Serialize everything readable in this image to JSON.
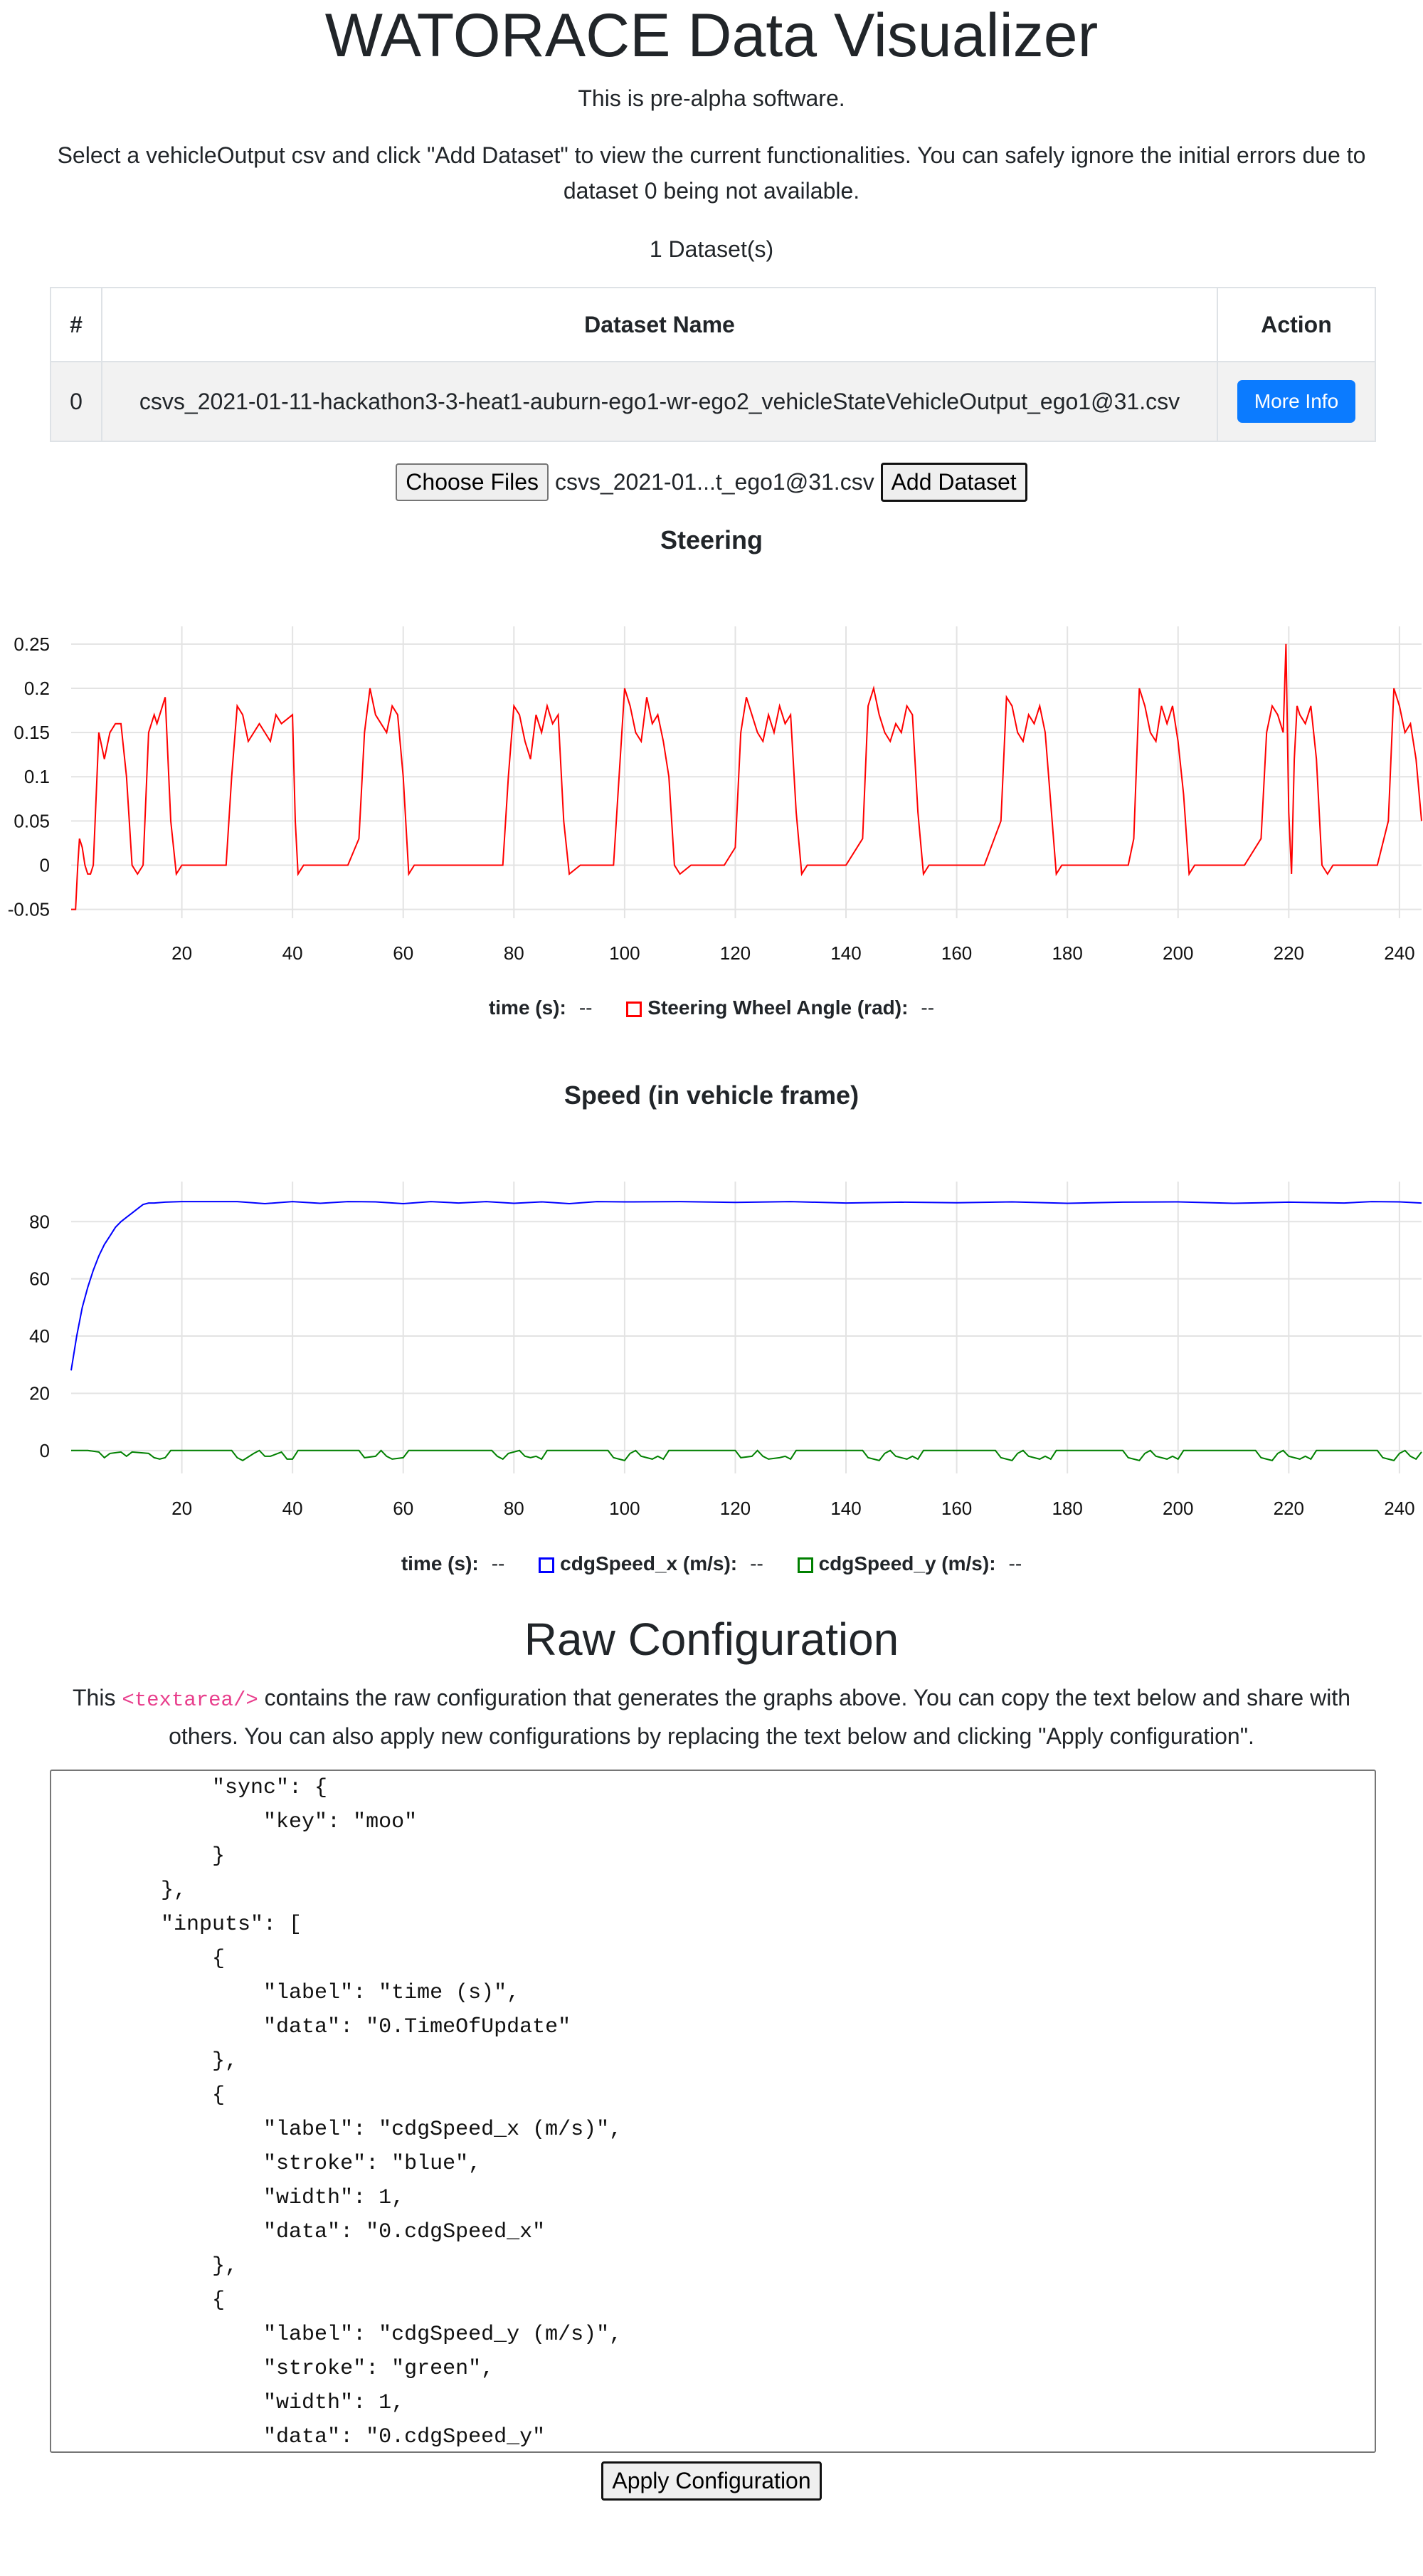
{
  "page": {
    "title": "WATORACE Data Visualizer",
    "subtitle": "This is pre-alpha software.",
    "instructions": "Select a vehicleOutput csv and click \"Add Dataset\" to view the current functionalities. You can safely ignore the initial errors due to dataset 0 being not available.",
    "dataset_count": "1 Dataset(s)"
  },
  "table": {
    "headers": [
      "#",
      "Dataset Name",
      "Action"
    ],
    "rows": [
      {
        "index": "0",
        "name": "csvs_2021-01-11-hackathon3-3-heat1-auburn-ego1-wr-ego2_vehicleStateVehicleOutput_ego1@31.csv",
        "action": "More Info"
      }
    ]
  },
  "file_input": {
    "choose_label": "Choose Files",
    "file_name": "csvs_2021-01...t_ego1@31.csv",
    "add_label": "Add Dataset"
  },
  "colors": {
    "steering": "#ff0000",
    "speed_x": "#0000ff",
    "speed_y": "#008000",
    "primary": "#0b7bff"
  },
  "chart_data": [
    {
      "type": "line",
      "title": "Steering",
      "xlim": [
        0,
        244
      ],
      "ylim": [
        -0.06,
        0.27
      ],
      "xticks": [
        20,
        40,
        60,
        80,
        100,
        120,
        140,
        160,
        180,
        200,
        220,
        240
      ],
      "yticks": [
        0.25,
        0.2,
        0.15,
        0.1,
        0.05,
        0,
        -0.05
      ],
      "ytick_labels": [
        "0.25",
        "0.2",
        "0.15",
        "0.1",
        "0.05",
        "0",
        "-0.05"
      ],
      "grid": true,
      "legend": {
        "time_label": "time (s):",
        "time_value": "--",
        "series_label": "Steering Wheel Angle (rad):",
        "series_value": "--"
      },
      "series": [
        {
          "name": "Steering Wheel Angle (rad)",
          "x": [
            0,
            0.8,
            1.2,
            1.5,
            2,
            2.5,
            3,
            3.5,
            4,
            5,
            6,
            7,
            8,
            9,
            10,
            11,
            12,
            13,
            14,
            15,
            15.5,
            16,
            17,
            18,
            19,
            20,
            21,
            22,
            23,
            25,
            28,
            29,
            30,
            31,
            32,
            33,
            34,
            35,
            36,
            37,
            38,
            40,
            40.5,
            41,
            42,
            43,
            45,
            48,
            50,
            52,
            53,
            54,
            55,
            56,
            57,
            58,
            59,
            60,
            61,
            62,
            63,
            64,
            66,
            70,
            75,
            78,
            79,
            80,
            81,
            82,
            83,
            84,
            85,
            86,
            87,
            88,
            89,
            90,
            92,
            96,
            98,
            99,
            100,
            101,
            102,
            103,
            104,
            105,
            106,
            107,
            108,
            109,
            110,
            112,
            118,
            120,
            121,
            122,
            123,
            124,
            125,
            126,
            127,
            128,
            129,
            130,
            131,
            132,
            133,
            135,
            140,
            143,
            144,
            145,
            146,
            147,
            148,
            149,
            150,
            151,
            152,
            153,
            154,
            155,
            156,
            158,
            165,
            168,
            169,
            170,
            171,
            172,
            173,
            174,
            175,
            176,
            177,
            178,
            179,
            180,
            182,
            188,
            191,
            192,
            193,
            194,
            195,
            196,
            197,
            198,
            199,
            200,
            201,
            202,
            203,
            204,
            206,
            212,
            215,
            216,
            217,
            218,
            219,
            219.5,
            220,
            220.5,
            221,
            221.5,
            222,
            223,
            224,
            225,
            226,
            227,
            228,
            229,
            230,
            232,
            236,
            238,
            239,
            240,
            241,
            242,
            243,
            244
          ],
          "y": [
            -0.05,
            -0.05,
            0.0,
            0.03,
            0.02,
            0.0,
            -0.01,
            -0.01,
            0.0,
            0.15,
            0.12,
            0.15,
            0.16,
            0.16,
            0.1,
            0.0,
            -0.01,
            0.0,
            0.15,
            0.17,
            0.16,
            0.17,
            0.19,
            0.05,
            -0.01,
            0.0,
            0.0,
            0.0,
            0.0,
            0.0,
            0.0,
            0.1,
            0.18,
            0.17,
            0.14,
            0.15,
            0.16,
            0.15,
            0.14,
            0.17,
            0.16,
            0.17,
            0.05,
            -0.01,
            0.0,
            0.0,
            0.0,
            0.0,
            0.0,
            0.03,
            0.15,
            0.2,
            0.17,
            0.16,
            0.15,
            0.18,
            0.17,
            0.1,
            -0.01,
            0.0,
            0.0,
            0.0,
            0.0,
            0.0,
            0.0,
            0.0,
            0.1,
            0.18,
            0.17,
            0.14,
            0.12,
            0.17,
            0.15,
            0.18,
            0.16,
            0.17,
            0.05,
            -0.01,
            0.0,
            0.0,
            0.0,
            0.1,
            0.2,
            0.18,
            0.15,
            0.14,
            0.19,
            0.16,
            0.17,
            0.14,
            0.1,
            0.0,
            -0.01,
            0.0,
            0.0,
            0.02,
            0.15,
            0.19,
            0.17,
            0.15,
            0.14,
            0.17,
            0.15,
            0.18,
            0.16,
            0.17,
            0.06,
            -0.01,
            0.0,
            0.0,
            0.0,
            0.03,
            0.18,
            0.2,
            0.17,
            0.15,
            0.14,
            0.16,
            0.15,
            0.18,
            0.17,
            0.06,
            -0.01,
            0.0,
            0.0,
            0.0,
            0.0,
            0.05,
            0.19,
            0.18,
            0.15,
            0.14,
            0.17,
            0.16,
            0.18,
            0.15,
            0.07,
            -0.01,
            0.0,
            0.0,
            0.0,
            0.0,
            0.0,
            0.03,
            0.2,
            0.18,
            0.15,
            0.14,
            0.18,
            0.16,
            0.18,
            0.14,
            0.08,
            -0.01,
            0.0,
            0.0,
            0.0,
            0.0,
            0.03,
            0.15,
            0.18,
            0.17,
            0.15,
            0.25,
            0.06,
            -0.01,
            0.12,
            0.18,
            0.17,
            0.16,
            0.18,
            0.12,
            0.0,
            -0.01,
            0.0,
            0.0,
            0.0,
            0.0,
            0.0,
            0.05,
            0.2,
            0.18,
            0.15,
            0.16,
            0.12,
            0.05
          ]
        }
      ]
    },
    {
      "type": "line",
      "title": "Speed (in vehicle frame)",
      "xlim": [
        0,
        244
      ],
      "ylim": [
        -8,
        94
      ],
      "xticks": [
        20,
        40,
        60,
        80,
        100,
        120,
        140,
        160,
        180,
        200,
        220,
        240
      ],
      "yticks": [
        80,
        60,
        40,
        20,
        0
      ],
      "ytick_labels": [
        "80",
        "60",
        "40",
        "20",
        "0"
      ],
      "grid": true,
      "legend": {
        "time_label": "time (s):",
        "time_value": "--"
      },
      "series": [
        {
          "name": "cdgSpeed_x (m/s)",
          "legend_label": "cdgSpeed_x (m/s):",
          "legend_value": "--",
          "x": [
            0,
            1,
            2,
            3,
            4,
            5,
            6,
            7,
            8,
            9,
            10,
            11,
            12,
            13,
            14,
            15,
            17,
            20,
            25,
            30,
            35,
            40,
            45,
            50,
            55,
            60,
            65,
            70,
            75,
            80,
            85,
            90,
            95,
            100,
            110,
            120,
            130,
            140,
            150,
            160,
            170,
            180,
            190,
            200,
            210,
            220,
            230,
            235,
            240,
            244
          ],
          "y": [
            28,
            40,
            50,
            57,
            63,
            68,
            72,
            75,
            78,
            80,
            81.5,
            83,
            84.5,
            86,
            86.5,
            86.5,
            86.8,
            87,
            87,
            87,
            86.3,
            87,
            86.4,
            87,
            86.9,
            86.3,
            87,
            86.5,
            87,
            86.4,
            86.9,
            86.3,
            87,
            86.9,
            87,
            86.7,
            87,
            86.5,
            86.8,
            86.6,
            86.9,
            86.4,
            86.8,
            86.9,
            86.4,
            86.8,
            86.5,
            87,
            86.9,
            86.5
          ]
        },
        {
          "name": "cdgSpeed_y (m/s)",
          "legend_label": "cdgSpeed_y (m/s):",
          "legend_value": "--",
          "x": [
            0,
            3,
            5,
            6,
            7,
            9,
            10,
            11,
            14,
            15,
            16,
            17,
            18,
            20,
            29,
            30,
            31,
            33,
            34,
            35,
            36,
            38,
            39,
            40,
            41,
            52,
            53,
            55,
            56,
            57,
            58,
            60,
            61,
            62,
            63,
            76,
            77,
            78,
            79,
            81,
            82,
            83,
            84,
            85,
            86,
            97,
            98,
            100,
            101,
            102,
            103,
            105,
            106,
            107,
            108,
            120,
            121,
            123,
            124,
            125,
            126,
            128,
            129,
            130,
            131,
            143,
            144,
            146,
            147,
            148,
            149,
            151,
            152,
            153,
            154,
            167,
            168,
            170,
            171,
            172,
            173,
            175,
            176,
            177,
            178,
            190,
            191,
            193,
            194,
            195,
            196,
            198,
            199,
            200,
            201,
            214,
            215,
            217,
            218,
            219,
            220,
            222,
            223,
            224,
            225,
            236,
            237,
            239,
            240,
            241,
            242,
            243,
            244
          ],
          "y": [
            0,
            0,
            -0.5,
            -2.5,
            -1,
            -0.5,
            -2,
            -0.5,
            -1,
            -2.5,
            -3,
            -2.5,
            0,
            0,
            0,
            -2.5,
            -3.5,
            -1,
            0,
            -2,
            -2,
            -0.5,
            -3,
            -3,
            0,
            0,
            -2.5,
            -2,
            0,
            -2,
            -3,
            -2.5,
            0,
            0,
            0,
            0,
            -2,
            -3,
            -1,
            0,
            -2,
            -2.5,
            -2,
            -3,
            0,
            0,
            -2.5,
            -3.5,
            -1,
            0,
            -2,
            -3,
            -2,
            -3,
            0,
            0,
            -2.5,
            -2,
            0,
            -2,
            -3,
            -2.5,
            -2,
            -3,
            0,
            0,
            -2.5,
            -3.5,
            -1,
            0,
            -2,
            -3,
            -2,
            -3,
            0,
            0,
            -2.5,
            -3.5,
            -1,
            0,
            -2,
            -3,
            -2,
            -3,
            0,
            0,
            -2.5,
            -3.5,
            -1,
            0,
            -2,
            -3,
            -2,
            -3,
            0,
            0,
            -2.5,
            -3.5,
            -1,
            0,
            -2,
            -3,
            -2,
            -3,
            0,
            0,
            -2.5,
            -3.5,
            -1,
            0,
            -2,
            -3,
            -0.5
          ]
        }
      ]
    }
  ],
  "raw_config": {
    "title": "Raw Configuration",
    "desc_before": "This ",
    "desc_code": "<textarea/>",
    "desc_after": " contains the raw configuration that generates the graphs above. You can copy the text below and share with others. You can also apply new configurations by replacing the text below and clicking \"Apply configuration\".",
    "text": "            \"sync\": {\n                \"key\": \"moo\"\n            }\n        },\n        \"inputs\": [\n            {\n                \"label\": \"time (s)\",\n                \"data\": \"0.TimeOfUpdate\"\n            },\n            {\n                \"label\": \"cdgSpeed_x (m/s)\",\n                \"stroke\": \"blue\",\n                \"width\": 1,\n                \"data\": \"0.cdgSpeed_x\"\n            },\n            {\n                \"label\": \"cdgSpeed_y (m/s)\",\n                \"stroke\": \"green\",\n                \"width\": 1,\n                \"data\": \"0.cdgSpeed_y\"",
    "apply_label": "Apply Configuration"
  }
}
